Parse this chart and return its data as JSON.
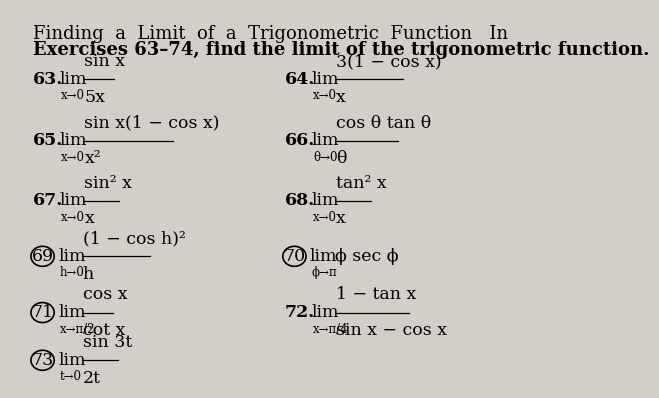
{
  "background_color": "#d3cfc8",
  "title_line1": "Finding  a  Limit  of  a  Trigonometric  Function   In",
  "title_line2": "Exercises 63–74, find the limit of the trigonometric function.",
  "title_fs": 13.0,
  "body_fs": 12.5,
  "sub_fs": 8.5
}
